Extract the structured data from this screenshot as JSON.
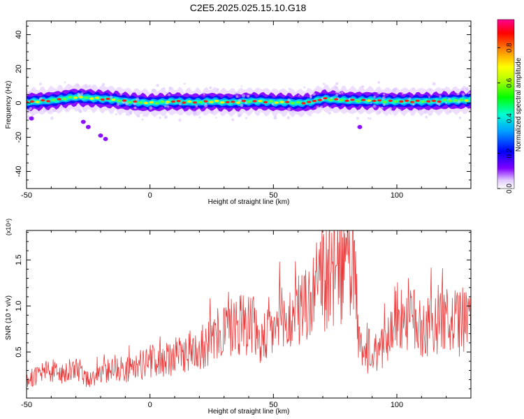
{
  "title": "C2E5.2025.025.15.10.G18",
  "colors": {
    "snr_line": "#e83a3a",
    "frame": "#000000",
    "colormap": [
      "#ffffff",
      "#e6d0ff",
      "#8000ff",
      "#0000ff",
      "#00aaff",
      "#00ffcc",
      "#00ff00",
      "#aaff00",
      "#ffff00",
      "#ff8800",
      "#ff0000",
      "#ff0088"
    ]
  },
  "chart_data": [
    {
      "type": "heatmap",
      "title": "",
      "xlabel": "Height of straight line (km)",
      "ylabel": "Frequency (Hz)",
      "xlim": [
        -50,
        130
      ],
      "ylim": [
        -50,
        48
      ],
      "xticks": [
        -50,
        0,
        50,
        100
      ],
      "yticks": [
        -40,
        -20,
        0,
        20,
        40
      ],
      "colorbar": {
        "label": "Normalized spectral amplitude",
        "range": [
          0,
          0.96
        ],
        "ticks": [
          "0.0",
          "0.2",
          "0.4",
          "0.6",
          "0.8"
        ]
      },
      "ridge": {
        "x": [
          -50,
          -45,
          -40,
          -35,
          -30,
          -25,
          -20,
          -15,
          -10,
          -5,
          0,
          5,
          10,
          15,
          20,
          25,
          30,
          35,
          40,
          45,
          50,
          55,
          60,
          65,
          70,
          75,
          80,
          85,
          90,
          95,
          100,
          105,
          110,
          115,
          120,
          125,
          130
        ],
        "y": [
          0.5,
          1.0,
          1.5,
          2.5,
          3.5,
          3.0,
          2.5,
          2.0,
          1.0,
          0.5,
          0.0,
          0.5,
          1.0,
          0.5,
          0.5,
          1.0,
          0.5,
          0.5,
          1.0,
          1.0,
          0.5,
          0.5,
          0.0,
          0.5,
          2.5,
          2.0,
          1.5,
          1.5,
          1.5,
          1.0,
          1.0,
          1.0,
          1.0,
          1.0,
          1.5,
          1.5,
          2.0
        ]
      },
      "outliers": [
        {
          "x": -48,
          "y": -9
        },
        {
          "x": -27,
          "y": -11
        },
        {
          "x": -25,
          "y": -14
        },
        {
          "x": -20,
          "y": -19
        },
        {
          "x": -18,
          "y": -21
        },
        {
          "x": 85,
          "y": -14
        }
      ]
    },
    {
      "type": "line",
      "title": "",
      "xlabel": "Height of straight line (km)",
      "ylabel": "SNR (10 * v/v)",
      "y_multiplier_label": "(x10⁴)",
      "xlim": [
        -50,
        130
      ],
      "ylim": [
        0,
        1.82
      ],
      "xticks": [
        -50,
        0,
        50,
        100
      ],
      "yticks": [
        "0.5",
        "1.0",
        "1.5"
      ],
      "series": [
        {
          "x": [
            -50,
            -45,
            -40,
            -35,
            -30,
            -25,
            -20,
            -15,
            -10,
            -5,
            0,
            5,
            10,
            15,
            20,
            25,
            30,
            35,
            40,
            45,
            50,
            55,
            60,
            65,
            70,
            75,
            80,
            82,
            85,
            90,
            95,
            100,
            105,
            110,
            115,
            120,
            125,
            130
          ],
          "y": [
            0.2,
            0.25,
            0.3,
            0.25,
            0.3,
            0.2,
            0.25,
            0.35,
            0.3,
            0.35,
            0.4,
            0.4,
            0.45,
            0.5,
            0.55,
            0.6,
            0.75,
            0.8,
            0.85,
            0.6,
            0.75,
            0.8,
            0.95,
            1.05,
            1.3,
            1.3,
            1.45,
            1.6,
            0.5,
            0.4,
            0.6,
            0.9,
            0.9,
            0.75,
            0.85,
            0.85,
            0.8,
            0.9
          ]
        }
      ]
    }
  ]
}
